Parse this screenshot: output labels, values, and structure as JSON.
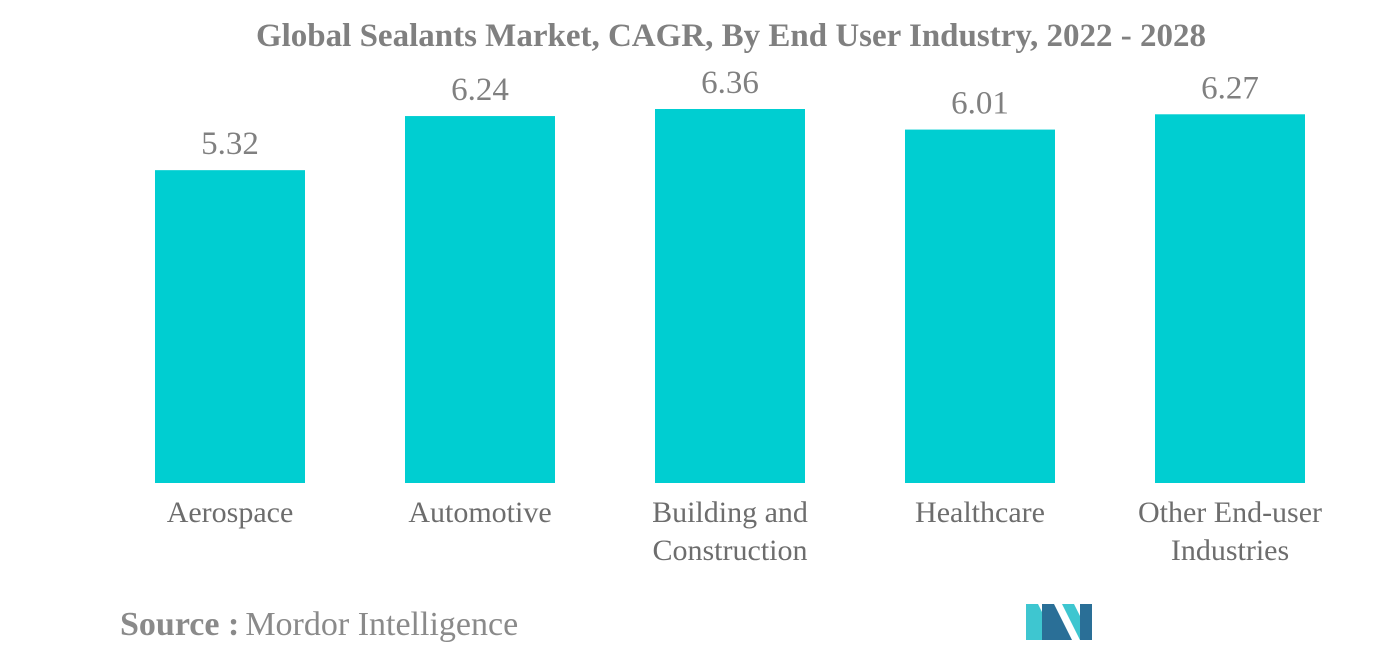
{
  "chart_data": {
    "type": "bar",
    "title": "Global Sealants Market, CAGR, By End User Industry, 2022 - 2028",
    "categories": [
      [
        "Aerospace"
      ],
      [
        "Automotive"
      ],
      [
        "Building and",
        "Construction"
      ],
      [
        "Healthcare"
      ],
      [
        "Other End-user",
        "Industries"
      ]
    ],
    "values": [
      5.32,
      6.24,
      6.36,
      6.01,
      6.27
    ],
    "data_labels": [
      "5.32",
      "6.24",
      "6.36",
      "6.01",
      "6.27"
    ],
    "ylim": [
      0,
      6.36
    ],
    "grid": false,
    "bar_color": "#00ced1"
  },
  "source": {
    "label": "Source :",
    "text": "Mordor Intelligence"
  },
  "colors": {
    "title": "#808080",
    "label": "#6d6d6d",
    "logo_dark": "#2a6f97",
    "logo_light": "#3ec6d0"
  },
  "logo": {
    "icon": "mordor-intelligence-logo-icon"
  }
}
